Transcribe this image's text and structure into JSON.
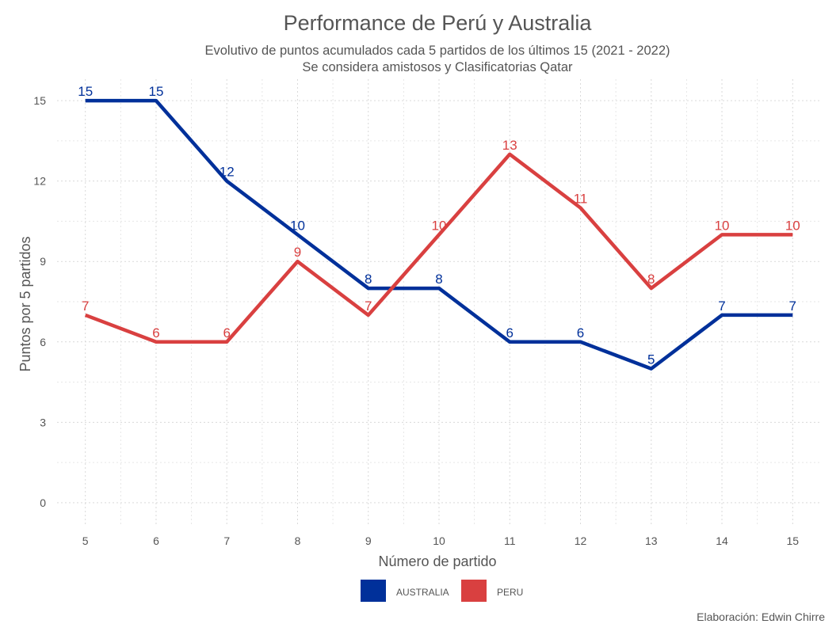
{
  "chart_data": {
    "type": "line",
    "title": "Performance de Perú y Australia",
    "subtitle_lines": [
      "Evolutivo de puntos acumulados cada 5 partidos de los últimos 15 (2021 - 2022)",
      "Se considera amistosos y Clasificatorias Qatar"
    ],
    "xlabel": "Número de partido",
    "ylabel": "Puntos por 5 partidos",
    "x": [
      5,
      6,
      7,
      8,
      9,
      10,
      11,
      12,
      13,
      14,
      15
    ],
    "xticks": [
      "5",
      "6",
      "7",
      "8",
      "9",
      "10",
      "11",
      "12",
      "13",
      "14",
      "15"
    ],
    "yticks": [
      "0",
      "3",
      "6",
      "9",
      "12",
      "15"
    ],
    "ylim": [
      0,
      15
    ],
    "xlim": [
      5,
      15
    ],
    "grid": true,
    "legend_position": "bottom",
    "series": [
      {
        "name": "AUSTRALIA",
        "color": "#00309a",
        "values": [
          15,
          15,
          12,
          10,
          8,
          8,
          6,
          6,
          5,
          7,
          7
        ]
      },
      {
        "name": "PERU",
        "color": "#d94040",
        "values": [
          7,
          6,
          6,
          9,
          7,
          10,
          13,
          11,
          8,
          10,
          10
        ]
      }
    ],
    "caption": "Elaboración: Edwin Chirre"
  }
}
